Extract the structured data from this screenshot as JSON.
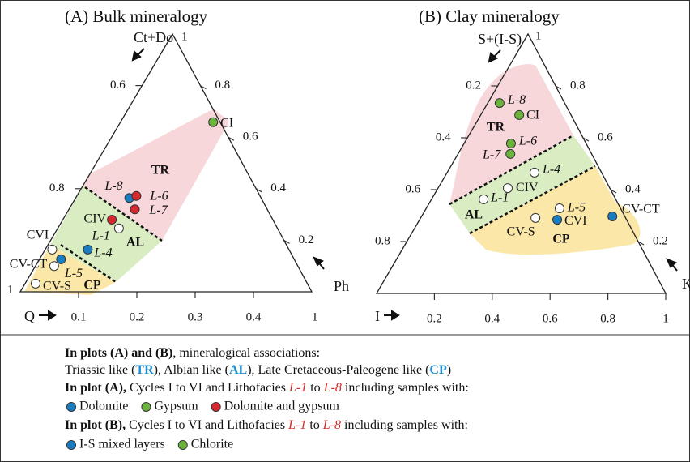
{
  "chart_data": [
    {
      "type": "ternary",
      "title": "(A) Bulk mineralogy",
      "top_label": "Ct+Do",
      "right_label": "Ph",
      "left_label": "Q",
      "corner_labels": {
        "top": 1,
        "left": 1,
        "right": 1
      },
      "bottom_lim": [
        0,
        0.5
      ],
      "bottom_ticks": [
        0.1,
        0.2,
        0.3,
        0.4
      ],
      "left_lim": [
        1,
        0.5
      ],
      "left_ticks": [
        0.6,
        0.8
      ],
      "right_lim": [
        0,
        1
      ],
      "right_ticks": [
        0.2,
        0.4,
        0.6,
        0.8
      ],
      "points": [
        {
          "label": "CI",
          "color": "#6cb33e",
          "r": 0.159,
          "t": 0.329
        },
        {
          "label": "L-8",
          "color": "#1a7dc2",
          "r": 0.092,
          "t": 0.182
        },
        {
          "label": "L-6",
          "color": "#d7282f",
          "r": 0.102,
          "t": 0.186
        },
        {
          "label": "L-7",
          "color": "#d7282f",
          "r": 0.113,
          "t": 0.16
        },
        {
          "label": "CIV",
          "color": "#d7282f",
          "r": 0.084,
          "t": 0.14
        },
        {
          "label": "L-1",
          "color": "#ffffff",
          "r": 0.105,
          "t": 0.123
        },
        {
          "label": "L-4",
          "color": "#1a7dc2",
          "r": 0.073,
          "t": 0.082
        },
        {
          "label": "CVI",
          "color": "#ffffff",
          "r": 0.012,
          "t": 0.082
        },
        {
          "label": "CV-CT",
          "color": "#1a7dc2",
          "r": 0.037,
          "t": 0.063
        },
        {
          "label": "L-5",
          "color": "#ffffff",
          "r": 0.032,
          "t": 0.05
        },
        {
          "label": "CV-S",
          "color": "#ffffff",
          "r": 0.018,
          "t": 0.016
        }
      ],
      "associations": [
        "TR",
        "AL",
        "CP"
      ]
    },
    {
      "type": "ternary",
      "title": "(B) Clay mineralogy",
      "top_label": "S+(I-S)",
      "right_label": "K",
      "left_label": "I",
      "corner_labels": {
        "top": 1
      },
      "bottom_lim": [
        0,
        1
      ],
      "bottom_ticks": [
        0.2,
        0.4,
        0.6,
        0.8,
        1
      ],
      "left_lim": [
        1,
        0
      ],
      "left_ticks": [
        0.2,
        0.4,
        0.6,
        0.8
      ],
      "right_lim": [
        0,
        1
      ],
      "right_ticks": [
        0.2,
        0.4,
        0.6,
        0.8
      ],
      "points": [
        {
          "label": "L-8",
          "color": "#6cb33e",
          "r": 0.041,
          "t": 0.734
        },
        {
          "label": "CI",
          "color": "#6cb33e",
          "r": 0.133,
          "t": 0.688
        },
        {
          "label": "L-6",
          "color": "#6cb33e",
          "r": 0.162,
          "t": 0.578
        },
        {
          "label": "L-7",
          "color": "#6cb33e",
          "r": 0.181,
          "t": 0.538
        },
        {
          "label": "L-4",
          "color": "#ffffff",
          "r": 0.302,
          "t": 0.466
        },
        {
          "label": "CIV",
          "color": "#ffffff",
          "r": 0.241,
          "t": 0.406
        },
        {
          "label": "L-1",
          "color": "#ffffff",
          "r": 0.18,
          "t": 0.363
        },
        {
          "label": "L-5",
          "color": "#ffffff",
          "r": 0.461,
          "t": 0.328
        },
        {
          "label": "CVI",
          "color": "#1a7dc2",
          "r": 0.476,
          "t": 0.284
        },
        {
          "label": "CV-S",
          "color": "#ffffff",
          "r": 0.397,
          "t": 0.291
        },
        {
          "label": "CV-CT",
          "color": "#1a7dc2",
          "r": 0.66,
          "t": 0.297
        }
      ],
      "associations": [
        "TR",
        "AL",
        "CP"
      ]
    }
  ],
  "legend": {
    "lines": [
      {
        "spans": [
          {
            "text": "In plots (A) and (B)",
            "style": "b"
          },
          {
            "text": ", mineralogical associations:",
            "style": "n"
          }
        ]
      },
      {
        "spans": [
          {
            "text": "Triassic like (",
            "style": "n"
          },
          {
            "text": "TR",
            "style": "tb"
          },
          {
            "text": "), Albian like (",
            "style": "n"
          },
          {
            "text": "AL",
            "style": "tb"
          },
          {
            "text": "), Late Cretaceous-Paleogene like (",
            "style": "n"
          },
          {
            "text": "CP",
            "style": "tb"
          },
          {
            "text": ")",
            "style": "n"
          }
        ]
      },
      {
        "spans": [
          {
            "text": "In plot (A),",
            "style": "b"
          },
          {
            "text": " Cycles I to VI and Lithofacies ",
            "style": "n"
          },
          {
            "text": "L-1",
            "style": "li"
          },
          {
            "text": " to ",
            "style": "n"
          },
          {
            "text": "L-8",
            "style": "li"
          },
          {
            "text": " including samples with:",
            "style": "n"
          }
        ]
      },
      {
        "items": [
          {
            "text": "Dolomite",
            "color": "#1a7dc2"
          },
          {
            "text": "Gypsum",
            "color": "#6cb33e"
          },
          {
            "text": "Dolomite and gypsum",
            "color": "#d7282f"
          }
        ]
      },
      {
        "spans": [
          {
            "text": "In plot (B),",
            "style": "b"
          },
          {
            "text": " Cycles I to VI and Lithofacies ",
            "style": "n"
          },
          {
            "text": "L-1",
            "style": "li"
          },
          {
            "text": " to ",
            "style": "n"
          },
          {
            "text": "L-8",
            "style": "li"
          },
          {
            "text": " including samples with:",
            "style": "n"
          }
        ]
      },
      {
        "items": [
          {
            "text": "I-S mixed layers",
            "color": "#1a7dc2"
          },
          {
            "text": "Chlorite",
            "color": "#6cb33e"
          }
        ]
      }
    ]
  }
}
